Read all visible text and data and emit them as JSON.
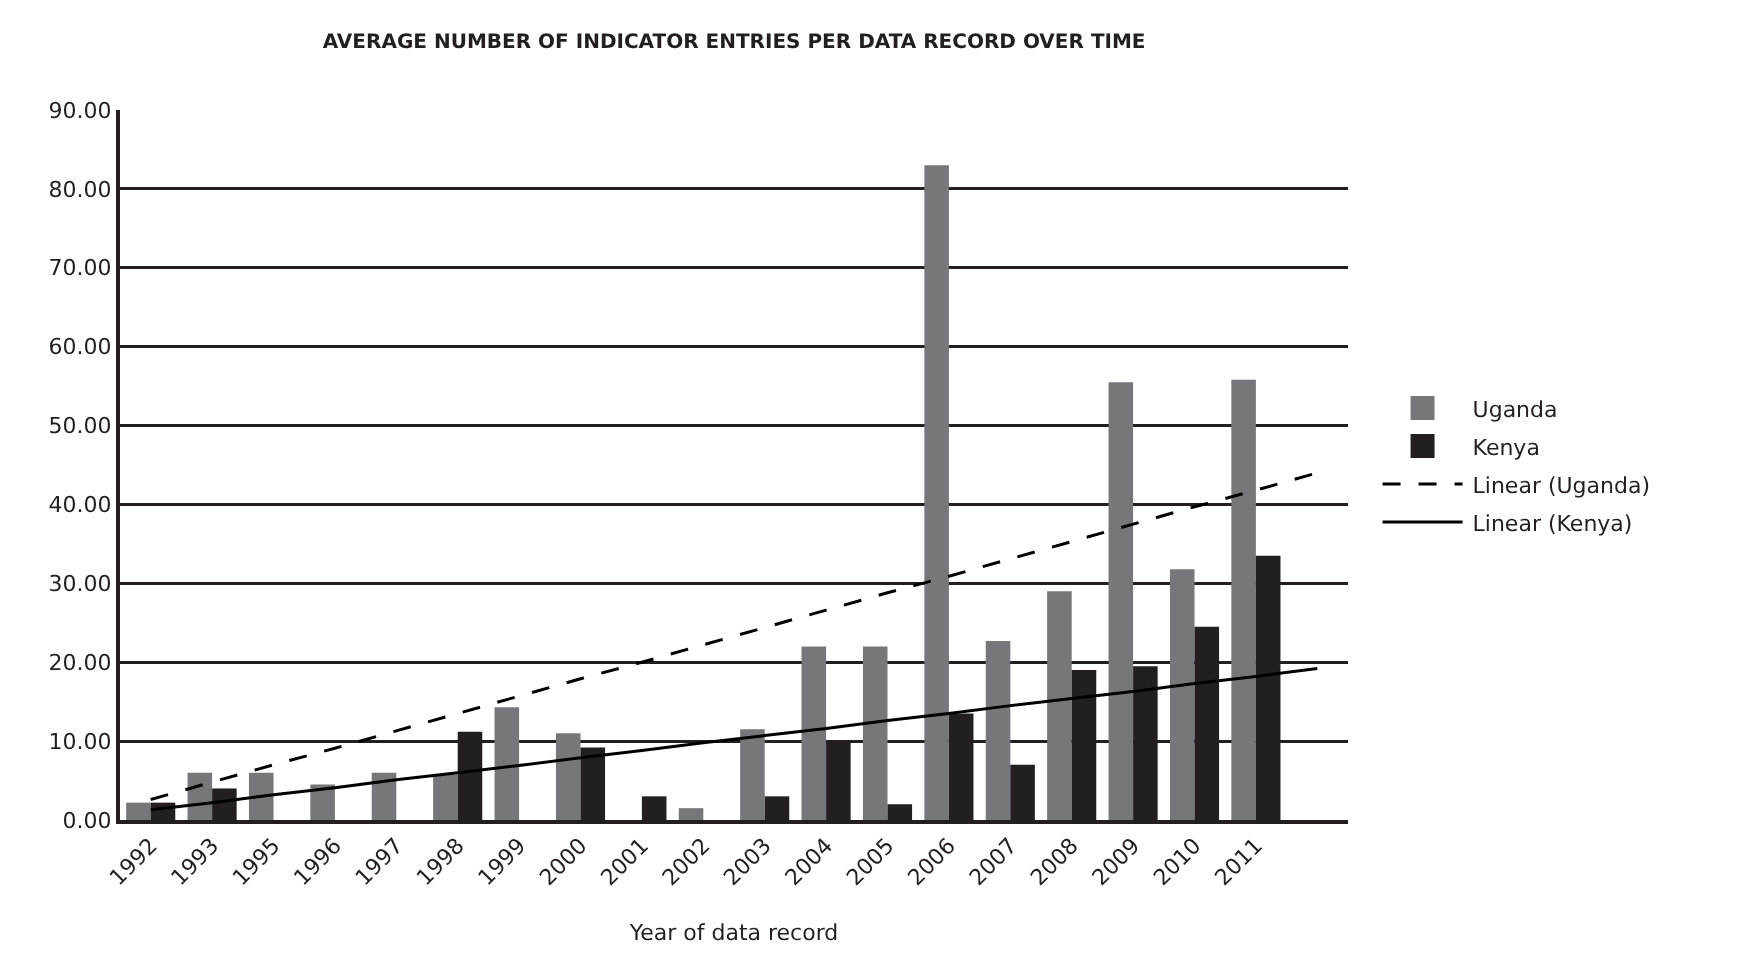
{
  "chart_data": {
    "type": "bar",
    "title": "AVERAGE NUMBER OF INDICATOR ENTRIES PER DATA RECORD OVER TIME",
    "xlabel": "Year of data record",
    "categories": [
      "1992",
      "1993",
      "1995",
      "1996",
      "1997",
      "1998",
      "1999",
      "2000",
      "2001",
      "2002",
      "2003",
      "2004",
      "2005",
      "2006",
      "2007",
      "2008",
      "2009",
      "2010",
      "2011",
      null
    ],
    "series": [
      {
        "name": "Uganda",
        "color": "#76777b",
        "values": [
          2.2,
          6,
          6,
          4.5,
          6,
          5.8,
          14.3,
          11,
          null,
          1.5,
          11.5,
          22,
          22,
          83,
          22.7,
          29,
          55.5,
          31.8,
          55.8,
          null
        ]
      },
      {
        "name": "Kenya",
        "color": "#231f20",
        "values": [
          2.2,
          4,
          null,
          null,
          null,
          11.2,
          null,
          9.2,
          3,
          null,
          3,
          10,
          2,
          13.5,
          7,
          19,
          19.5,
          24.5,
          33.5,
          null
        ]
      },
      {
        "name": "Linear (Uganda)",
        "type": "line",
        "line_style": "dashed",
        "color": "#000000",
        "values": [
          2.6,
          4.8,
          7.0,
          9.1,
          11.3,
          13.5,
          15.7,
          17.9,
          20.0,
          22.2,
          24.4,
          26.6,
          28.8,
          30.9,
          33.1,
          35.3,
          37.5,
          39.7,
          41.8,
          44.0
        ]
      },
      {
        "name": "Linear (Kenya)",
        "type": "line",
        "line_style": "solid",
        "color": "#000000",
        "values": [
          1.3,
          2.2,
          3.2,
          4.1,
          5.1,
          6.0,
          6.9,
          7.9,
          8.8,
          9.8,
          10.7,
          11.6,
          12.6,
          13.5,
          14.5,
          15.4,
          16.3,
          17.3,
          18.2,
          19.2
        ]
      }
    ],
    "ylim": [
      0,
      90
    ],
    "yticks": [
      {
        "value": 0,
        "label": "0.00"
      },
      {
        "value": 10,
        "label": "10.00"
      },
      {
        "value": 20,
        "label": "20.00"
      },
      {
        "value": 30,
        "label": "30.00"
      },
      {
        "value": 40,
        "label": "40.00"
      },
      {
        "value": 50,
        "label": "50.00"
      },
      {
        "value": 60,
        "label": "60.00"
      },
      {
        "value": 70,
        "label": "70.00"
      },
      {
        "value": 80,
        "label": "80.00"
      },
      {
        "value": 90,
        "label": "90.00"
      }
    ],
    "grid": "y",
    "legend": "right",
    "marker": "none"
  }
}
